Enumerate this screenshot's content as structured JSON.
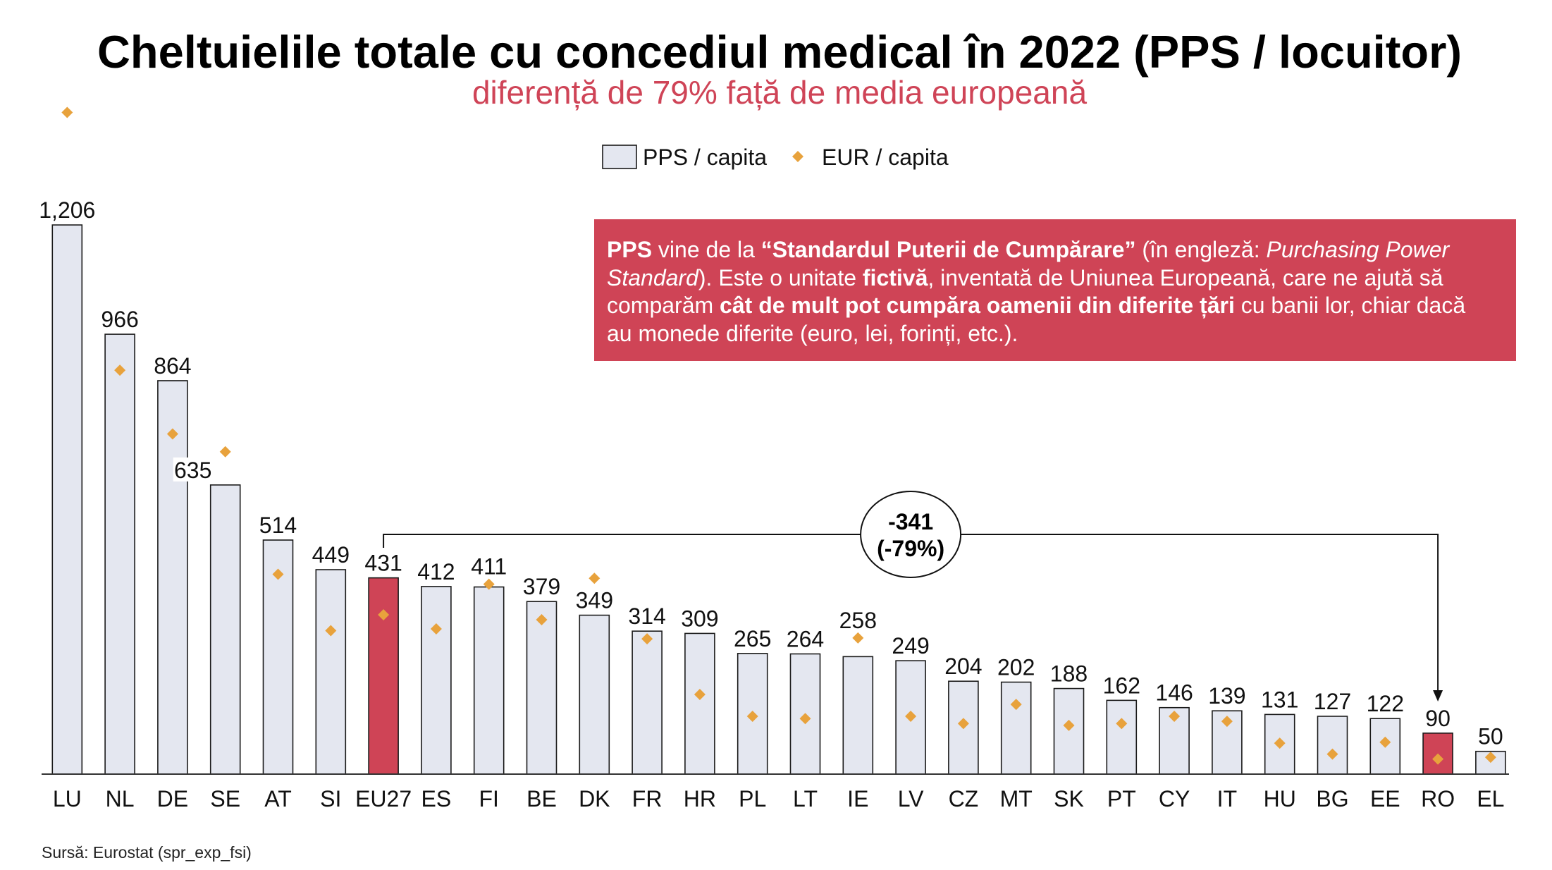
{
  "chart_data": {
    "type": "bar",
    "title": "Cheltuielile totale cu concediul medical în 2022 (PPS / locuitor)",
    "subtitle": "diferență de 79% față de media europeană",
    "categories": [
      "LU",
      "NL",
      "DE",
      "SE",
      "AT",
      "SI",
      "EU27",
      "ES",
      "FI",
      "BE",
      "DK",
      "FR",
      "HR",
      "PL",
      "LT",
      "IE",
      "LV",
      "CZ",
      "MT",
      "SK",
      "PT",
      "CY",
      "IT",
      "HU",
      "BG",
      "EE",
      "RO",
      "EL"
    ],
    "series": [
      {
        "name": "PPS / capita",
        "type": "bar",
        "values": [
          1206,
          966,
          864,
          635,
          514,
          449,
          431,
          412,
          411,
          379,
          349,
          314,
          309,
          265,
          264,
          258,
          249,
          204,
          202,
          188,
          162,
          146,
          139,
          131,
          127,
          122,
          90,
          50
        ],
        "labels": [
          "1,206",
          "966",
          "864",
          "635",
          "514",
          "449",
          "431",
          "412",
          "411",
          "379",
          "349",
          "314",
          "309",
          "265",
          "264",
          "258",
          "249",
          "204",
          "202",
          "188",
          "162",
          "146",
          "139",
          "131",
          "127",
          "122",
          "90",
          "50"
        ],
        "highlighted": [
          false,
          false,
          false,
          false,
          false,
          false,
          true,
          false,
          false,
          false,
          false,
          false,
          false,
          false,
          false,
          false,
          false,
          false,
          false,
          false,
          false,
          false,
          false,
          false,
          false,
          false,
          true,
          false
        ]
      },
      {
        "name": "EUR / capita",
        "type": "scatter",
        "marker": "diamond",
        "values": [
          1453,
          887,
          747,
          708,
          439,
          315,
          350,
          319,
          417,
          339,
          430,
          297,
          175,
          127,
          122,
          299,
          127,
          111,
          153,
          107,
          111,
          127,
          116,
          68,
          44,
          70,
          33,
          37
        ]
      }
    ],
    "annotation": {
      "value": "-341",
      "percent": "(-79%)"
    },
    "ylim": [
      0,
      1700
    ],
    "grid": false,
    "legend_position": "top-center"
  },
  "colors": {
    "bar": "#e4e7f0",
    "bar_outline": "#1a1a1a",
    "highlight_bar": "#cf4456",
    "eur_marker": "#e8a23c",
    "subtitle": "#cf4457",
    "info_box": "#cf4456",
    "info_text": "#ffffff"
  },
  "info_box": {
    "lines": [
      [
        "PPS",
        " vine de la ",
        "“Standardul Puterii de Cumpărare”",
        " (în engleză: ",
        "Purchasing Power"
      ],
      [
        "Standard",
        "). Este o unitate ",
        "fictivă",
        ", inventată de Uniunea Europeană, care ne ajută să"
      ],
      [
        "comparăm ",
        "cât de mult pot cumpăra oamenii din diferite țări",
        " cu banii lor, chiar dacă"
      ],
      [
        "au monede diferite (euro, lei, forinți, etc.)."
      ]
    ]
  },
  "source": "Sursă: Eurostat (spr_exp_fsi)"
}
